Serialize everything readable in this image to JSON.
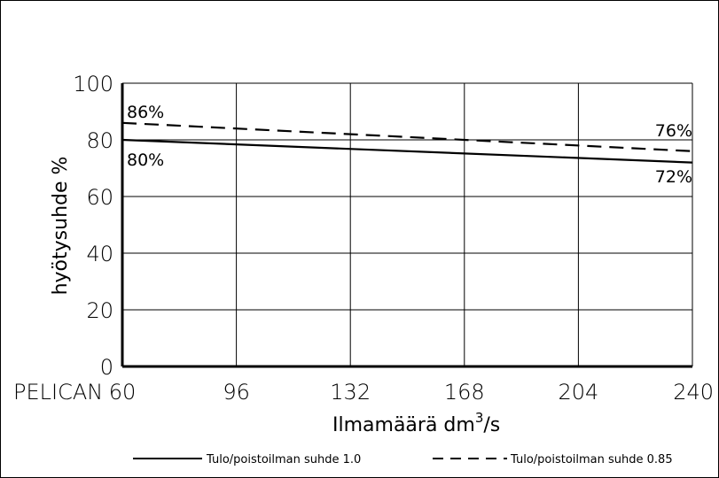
{
  "chart_data": {
    "type": "line",
    "x": [
      60,
      96,
      132,
      168,
      204,
      240
    ],
    "xlim": [
      60,
      240
    ],
    "ylim": [
      0,
      100
    ],
    "yticks": [
      "0",
      "20",
      "40",
      "60",
      "80",
      "100"
    ],
    "xticks": [
      "60",
      "96",
      "132",
      "168",
      "204",
      "240"
    ],
    "ylabel": "hyötysuhde %",
    "xlabel_main": "Ilmamäärä dm",
    "xlabel_sup": "3",
    "xlabel_tail": "/s",
    "row_label": "PELICAN",
    "grid": true,
    "legend_position": "bottom",
    "series": [
      {
        "name": "Tulo/poistoilman suhde 1.0",
        "style": "solid",
        "x": [
          60,
          240
        ],
        "y": [
          80,
          72
        ]
      },
      {
        "name": "Tulo/poistoilman suhde 0.85",
        "style": "dashed",
        "x": [
          60,
          240
        ],
        "y": [
          86,
          76
        ]
      }
    ],
    "annotations": {
      "start_dashed": "86%",
      "start_solid": "80%",
      "end_dashed": "76%",
      "end_solid": "72%"
    }
  }
}
